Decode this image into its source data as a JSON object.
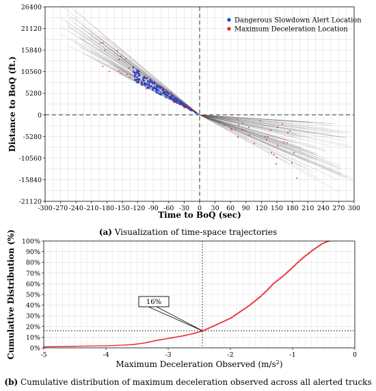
{
  "chart_data": [
    {
      "type": "scatter",
      "xlabel": "Time to BoQ (sec)",
      "ylabel": "Distance to BoQ (ft.)",
      "xlim": [
        -300,
        300
      ],
      "ylim": [
        -21120,
        26400
      ],
      "xticks": [
        -300,
        -270,
        -240,
        -210,
        -180,
        -150,
        -120,
        -90,
        -60,
        -30,
        0,
        30,
        60,
        90,
        120,
        150,
        180,
        210,
        240,
        270,
        300
      ],
      "yticks": [
        -21120,
        -15840,
        -10560,
        -5280,
        0,
        5280,
        10560,
        15840,
        21120,
        26400
      ],
      "grid": true,
      "legend_position": "top-right",
      "series": [
        {
          "name": "Dangerous Slowdown Alert Location",
          "color": "#1f3fd8"
        },
        {
          "name": "Maximum Deceleration Location",
          "color": "#e8202a"
        }
      ],
      "trajectory_color": "#555555",
      "caption_label": "(a)",
      "caption_text": "Visualization of time-space trajectories"
    },
    {
      "type": "line",
      "xlabel": "Maximum Deceleration Observed",
      "xlabel_unit_base": "(m/s",
      "xlabel_unit_exp": "2",
      "xlabel_unit_close": ")",
      "ylabel": "Cumulative Distribution (%)",
      "xlim": [
        -5,
        0
      ],
      "ylim": [
        0,
        100
      ],
      "xticks": [
        -5,
        -4,
        -3,
        -2,
        -1,
        0
      ],
      "yticks": [
        "0%",
        "10%",
        "20%",
        "30%",
        "40%",
        "50%",
        "60%",
        "70%",
        "80%",
        "90%",
        "100%"
      ],
      "grid": true,
      "series": [
        {
          "color": "#e8202a",
          "x": [
            -5.0,
            -4.5,
            -4.0,
            -3.6,
            -3.4,
            -3.2,
            -3.0,
            -2.8,
            -2.6,
            -2.45,
            -2.3,
            -2.15,
            -2.0,
            -1.85,
            -1.7,
            -1.55,
            -1.4,
            -1.3,
            -1.15,
            -1.0,
            -0.85,
            -0.7,
            -0.55,
            -0.45,
            -0.4
          ],
          "y": [
            1,
            1.5,
            2,
            3,
            4.5,
            7,
            9,
            11,
            13.5,
            16,
            20,
            24,
            28,
            34,
            40,
            47,
            55,
            61,
            68,
            76,
            84,
            91,
            97,
            99.5,
            100
          ]
        }
      ],
      "reference_x": -2.45,
      "reference_y": 16,
      "annotation": "16%",
      "caption_label": "(b)",
      "caption_text": "Cumulative distribution of maximum deceleration observed across all alerted trucks"
    }
  ]
}
